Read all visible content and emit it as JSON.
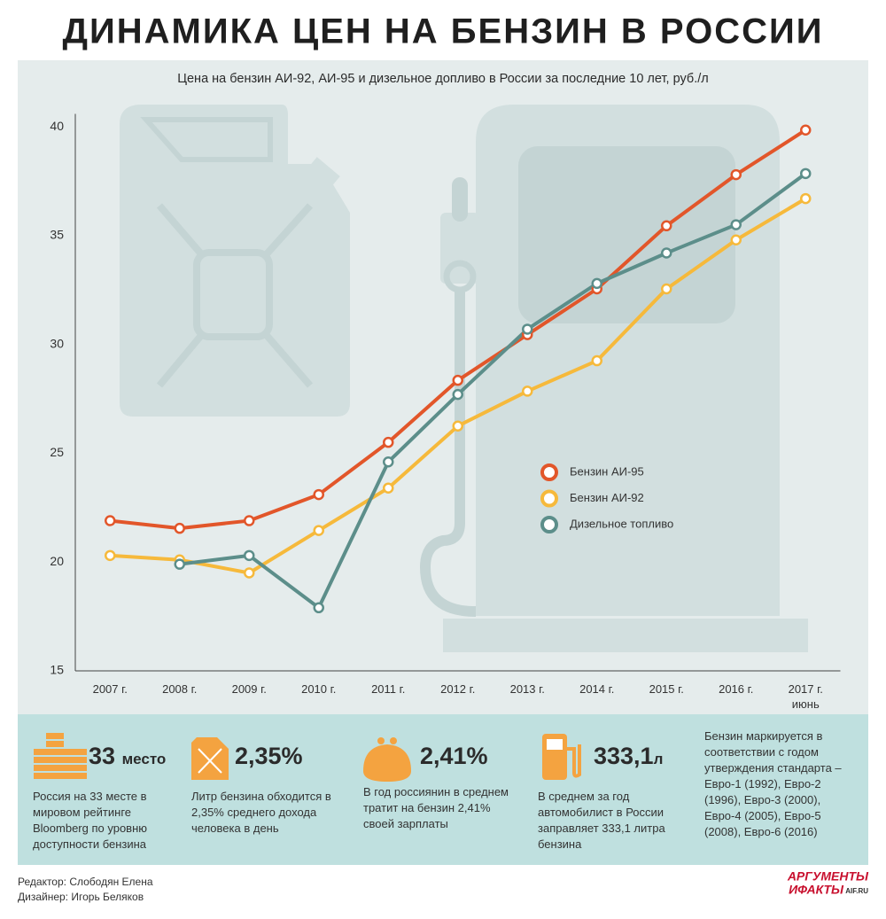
{
  "chart_data": {
    "type": "line",
    "title": "ДИНАМИКА ЦЕН НА БЕНЗИН В РОССИИ",
    "subtitle": "Цена на бензин АИ-92, АИ-95 и дизельное допливо в России за последние 10 лет, руб./л",
    "categories": [
      "2007 г.",
      "2008 г.",
      "2009 г.",
      "2010 г.",
      "2011 г.",
      "2012 г.",
      "2013 г.",
      "2014 г.",
      "2015 г.",
      "2016 г.",
      "2017 г. июнь"
    ],
    "series": [
      {
        "name": "Бензин АИ-95",
        "color": "#e2562a",
        "values": [
          21.9,
          21.55,
          21.9,
          23.1,
          25.5,
          28.35,
          30.45,
          32.55,
          35.45,
          37.8,
          39.85
        ]
      },
      {
        "name": "Бензин АИ-92",
        "color": "#f6b93b",
        "values": [
          20.3,
          20.1,
          19.5,
          21.45,
          23.4,
          26.25,
          27.85,
          29.25,
          32.55,
          34.8,
          36.7
        ]
      },
      {
        "name": "Дизельное топливо",
        "color": "#5c8e8a",
        "values": [
          null,
          19.9,
          20.3,
          17.9,
          24.6,
          27.7,
          30.7,
          32.8,
          34.2,
          35.5,
          37.85
        ]
      }
    ],
    "ylim": [
      15,
      41
    ],
    "yticks": [
      15,
      20,
      25,
      30,
      35,
      40
    ],
    "grid": false,
    "legend": "center-right"
  },
  "info": [
    {
      "value": "33",
      "unit": "место",
      "text": "Россия на 33 месте в мировом рейтинге Bloomberg по уровню доступности бензина"
    },
    {
      "value": "2,35%",
      "text": "Литр бензина обходится в 2,35% среднего дохода человека в день"
    },
    {
      "value": "2,41%",
      "text": "В год россиянин в среднем тратит на бензин 2,41% своей зарплаты"
    },
    {
      "value": "333,1",
      "unit": "л",
      "text": "В среднем за год автомобилист в России заправляет 333,1 литра бензина"
    },
    {
      "text": "Бензин маркируется в соответствии с годом утверждения стандарта – Евро-1 (1992), Евро-2 (1996), Евро-3 (2000), Евро-4 (2005), Евро-5 (2008), Евро-6 (2016)"
    }
  ],
  "credits": {
    "editor": "Редактор: Слободян Елена",
    "designer": "Дизайнер: Игорь Беляков"
  },
  "logo": {
    "line1": "АРГУМЕНТЫ",
    "line2": "ИФАКТЫ",
    "site": "AIF.RU"
  }
}
